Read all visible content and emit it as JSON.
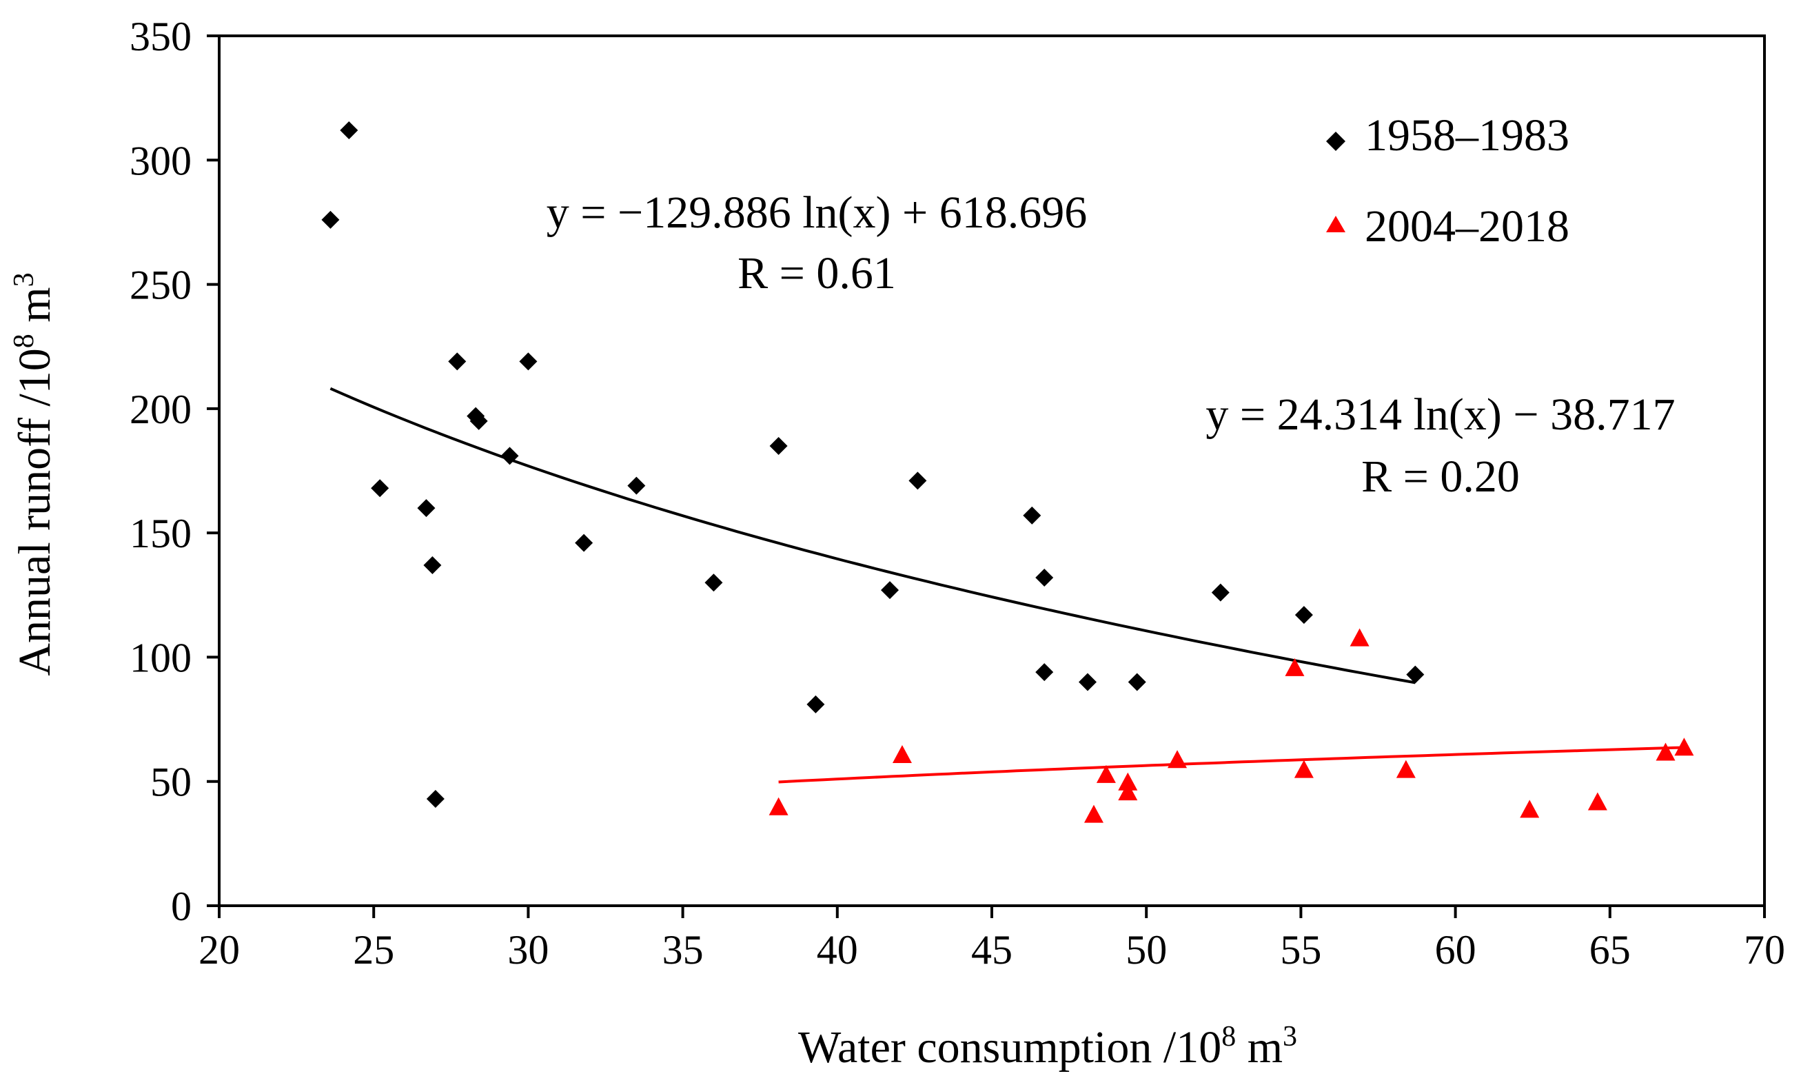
{
  "chart_data": {
    "type": "scatter",
    "title": "",
    "xlabel": "Water consumption /10",
    "xlabel_sup": "8",
    "xlabel_unit": " m",
    "xlabel_unit_sup": "3",
    "ylabel": "Annual runoff /10",
    "ylabel_sup": "8",
    "ylabel_unit": " m",
    "ylabel_unit_sup": "3",
    "xlim": [
      20,
      70
    ],
    "ylim": [
      0,
      350
    ],
    "xticks": [
      20,
      25,
      30,
      35,
      40,
      45,
      50,
      55,
      60,
      65,
      70
    ],
    "yticks": [
      0,
      50,
      100,
      150,
      200,
      250,
      300,
      350
    ],
    "grid": false,
    "legend_position": "top-right",
    "series": [
      {
        "name": "1958–1983",
        "marker": "diamond",
        "color": "#000000",
        "points": [
          [
            23.6,
            276
          ],
          [
            24.2,
            312
          ],
          [
            25.2,
            168
          ],
          [
            26.7,
            160
          ],
          [
            26.9,
            137
          ],
          [
            27.0,
            43
          ],
          [
            27.7,
            219
          ],
          [
            28.3,
            197
          ],
          [
            28.4,
            195
          ],
          [
            29.4,
            181
          ],
          [
            30.0,
            219
          ],
          [
            31.8,
            146
          ],
          [
            33.5,
            169
          ],
          [
            36.0,
            130
          ],
          [
            38.1,
            185
          ],
          [
            39.3,
            81
          ],
          [
            41.7,
            127
          ],
          [
            42.6,
            171
          ],
          [
            46.3,
            157
          ],
          [
            46.7,
            132
          ],
          [
            46.7,
            94
          ],
          [
            48.1,
            90
          ],
          [
            49.7,
            90
          ],
          [
            52.4,
            126
          ],
          [
            55.1,
            117
          ],
          [
            58.7,
            93
          ]
        ],
        "fit": {
          "equation": "y = −129.886 ln(x) + 618.696",
          "r_text": "R = 0.61",
          "a": -129.886,
          "b": 618.696,
          "x_range": [
            23.6,
            58.7
          ]
        }
      },
      {
        "name": "2004–2018",
        "marker": "triangle",
        "color": "#ff0000",
        "points": [
          [
            38.1,
            40
          ],
          [
            42.1,
            61
          ],
          [
            48.3,
            37
          ],
          [
            48.7,
            53
          ],
          [
            49.4,
            50
          ],
          [
            49.4,
            46
          ],
          [
            51.0,
            59
          ],
          [
            54.8,
            96
          ],
          [
            55.1,
            55
          ],
          [
            56.9,
            108
          ],
          [
            58.4,
            55
          ],
          [
            62.4,
            39
          ],
          [
            64.6,
            42
          ],
          [
            66.8,
            62
          ],
          [
            67.4,
            64
          ]
        ],
        "fit": {
          "equation": "y = 24.314 ln(x) − 38.717",
          "r_text": "R = 0.20",
          "a": 24.314,
          "b": -38.717,
          "x_range": [
            38.1,
            67.4
          ]
        }
      }
    ]
  }
}
